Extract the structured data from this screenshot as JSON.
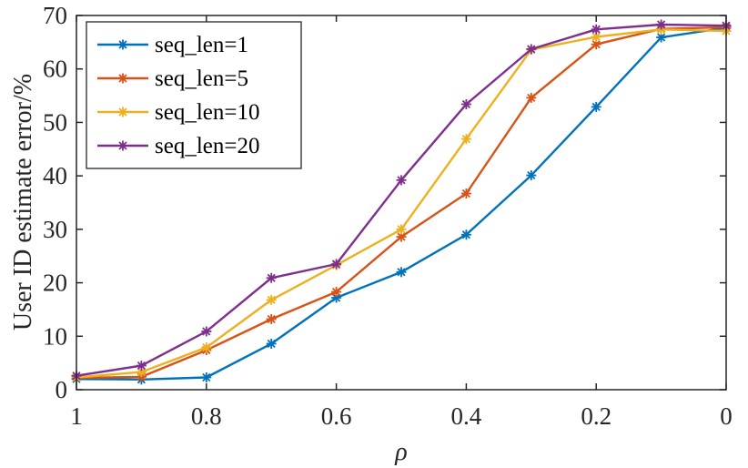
{
  "chart_data": {
    "type": "line",
    "xlabel": "ρ",
    "ylabel": "User ID estimate error/%",
    "xlim": [
      0,
      1
    ],
    "x_reversed": true,
    "ylim": [
      0,
      70
    ],
    "x_ticks": [
      "1",
      "0.8",
      "0.6",
      "0.4",
      "0.2",
      "0"
    ],
    "y_ticks": [
      "0",
      "10",
      "20",
      "30",
      "40",
      "50",
      "60",
      "70"
    ],
    "grid": false,
    "legend_position": "top-left",
    "marker": "asterisk",
    "x": [
      1,
      0.9,
      0.8,
      0.7,
      0.6,
      0.5,
      0.4,
      0.3,
      0.2,
      0.1,
      0
    ],
    "series": [
      {
        "name": "seq_len=1",
        "color": "#0072BD",
        "values": [
          2.0,
          1.9,
          2.3,
          8.6,
          17.2,
          22.0,
          29.0,
          40.1,
          52.9,
          65.9,
          67.7
        ]
      },
      {
        "name": "seq_len=5",
        "color": "#D95319",
        "values": [
          2.2,
          2.4,
          7.4,
          13.2,
          18.3,
          28.6,
          36.7,
          54.6,
          64.6,
          67.5,
          67.8
        ]
      },
      {
        "name": "seq_len=10",
        "color": "#EDB120",
        "values": [
          2.3,
          3.3,
          7.9,
          16.8,
          23.3,
          30.0,
          46.9,
          63.6,
          66.0,
          67.4,
          67.1
        ]
      },
      {
        "name": "seq_len=20",
        "color": "#7E2F8E",
        "values": [
          2.6,
          4.5,
          10.9,
          20.9,
          23.5,
          39.2,
          53.4,
          63.7,
          67.4,
          68.3,
          68.1
        ]
      }
    ]
  }
}
